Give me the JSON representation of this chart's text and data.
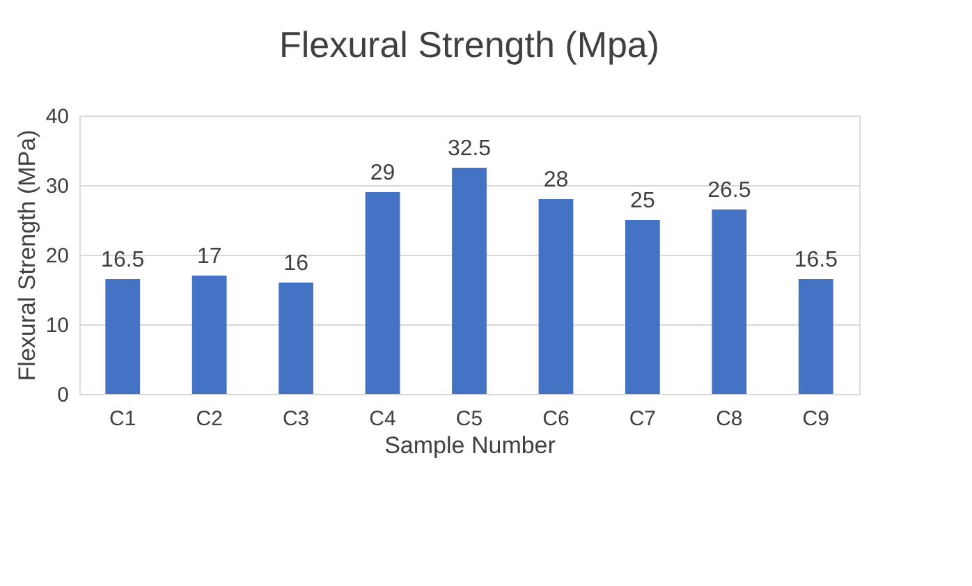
{
  "chart_data": {
    "type": "bar",
    "title": "Flexural Strength (Mpa)",
    "xlabel": "Sample Number",
    "ylabel": "Flexural Strength (MPa)",
    "categories": [
      "C1",
      "C2",
      "C3",
      "C4",
      "C5",
      "C6",
      "C7",
      "C8",
      "C9"
    ],
    "values": [
      16.5,
      17,
      16,
      29,
      32.5,
      28,
      25,
      26.5,
      16.5
    ],
    "color": "#4472c4",
    "ylim": [
      0,
      40
    ],
    "yticks": [
      0,
      10,
      20,
      30,
      40
    ],
    "grid": "y",
    "data_labels": true
  }
}
